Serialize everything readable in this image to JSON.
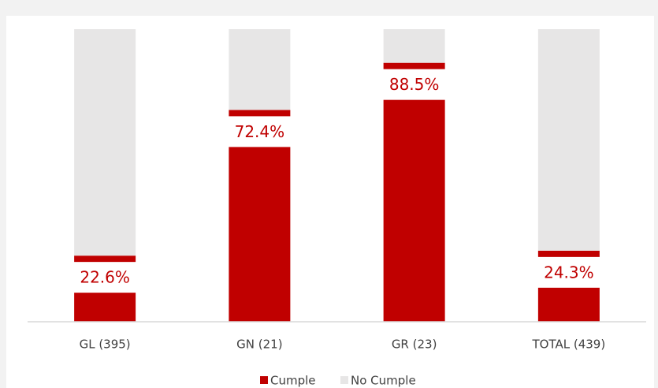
{
  "chart_data": {
    "type": "stacked_bar",
    "categories": [
      "GL (395)",
      "GN (21)",
      "GR (23)",
      "TOTAL (439)"
    ],
    "series": [
      {
        "name": "Cumple",
        "color": "#c00000",
        "values": [
          22.6,
          72.4,
          88.5,
          24.3
        ],
        "value_labels": [
          "22.6%",
          "72.4%",
          "88.5%",
          "24.3%"
        ]
      },
      {
        "name": "No Cumple",
        "color": "#e7e6e6",
        "values": [
          77.4,
          27.6,
          11.5,
          75.7
        ]
      }
    ],
    "ylim": [
      0,
      100
    ],
    "legend": "bottom"
  }
}
